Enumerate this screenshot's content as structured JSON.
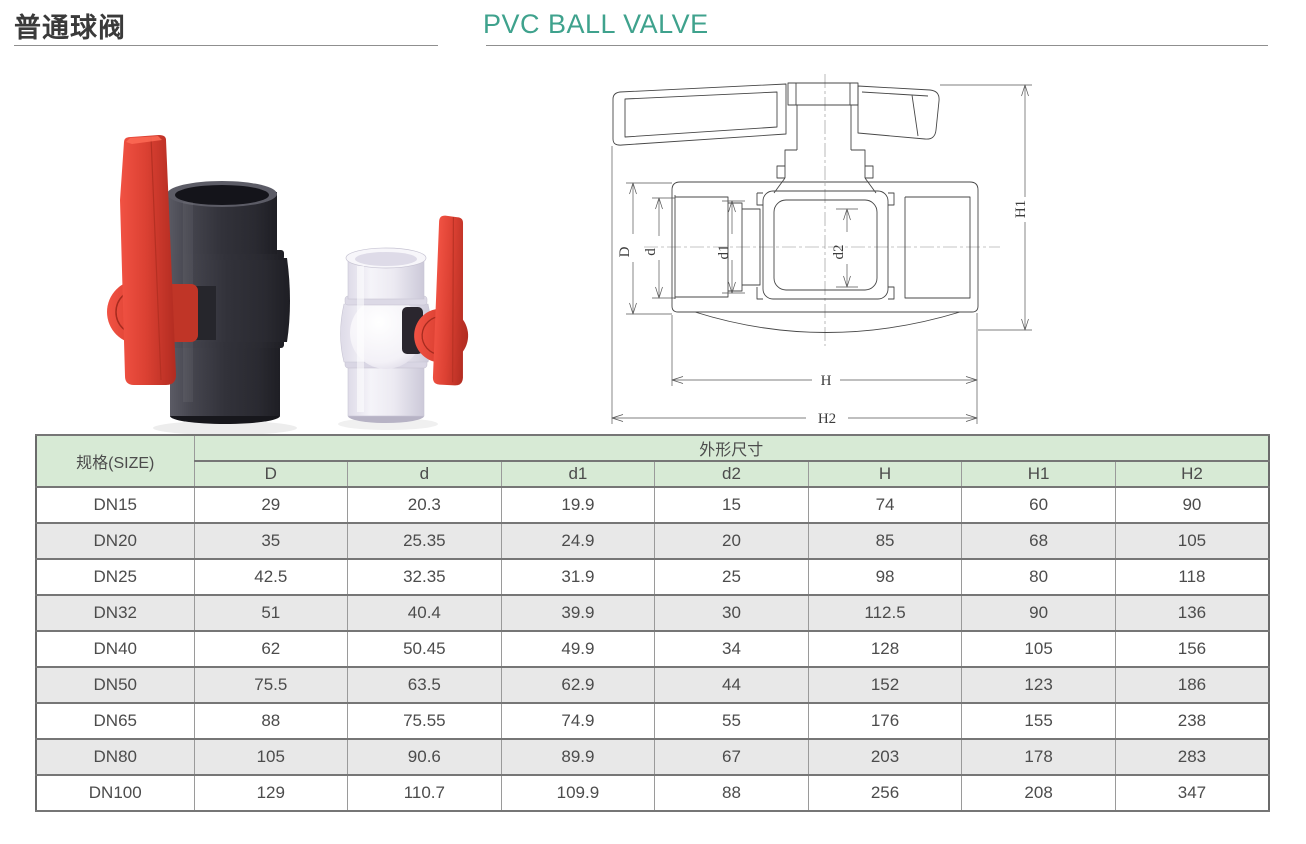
{
  "header": {
    "title_cn": "普通球阀",
    "title_en": "PVC BALL VALVE",
    "accent_color": "#3fa28d"
  },
  "products": [
    {
      "name": "dark-compact-ball-valve",
      "handle_color": "#d63a2c",
      "body_color": "#35353d"
    },
    {
      "name": "clear-compact-ball-valve",
      "handle_color": "#d63a2c",
      "body_color": "#eceadeF"
    }
  ],
  "diagram": {
    "dim_labels": [
      "D",
      "d",
      "d1",
      "d2",
      "H",
      "H1",
      "H2"
    ]
  },
  "table": {
    "size_header": "规格(SIZE)",
    "group_header": "外形尺寸",
    "columns": [
      "D",
      "d",
      "d1",
      "d2",
      "H",
      "H1",
      "H2"
    ],
    "rows": [
      {
        "size": "DN15",
        "values": [
          "29",
          "20.3",
          "19.9",
          "15",
          "74",
          "60",
          "90"
        ]
      },
      {
        "size": "DN20",
        "values": [
          "35",
          "25.35",
          "24.9",
          "20",
          "85",
          "68",
          "105"
        ]
      },
      {
        "size": "DN25",
        "values": [
          "42.5",
          "32.35",
          "31.9",
          "25",
          "98",
          "80",
          "118"
        ]
      },
      {
        "size": "DN32",
        "values": [
          "51",
          "40.4",
          "39.9",
          "30",
          "112.5",
          "90",
          "136"
        ]
      },
      {
        "size": "DN40",
        "values": [
          "62",
          "50.45",
          "49.9",
          "34",
          "128",
          "105",
          "156"
        ]
      },
      {
        "size": "DN50",
        "values": [
          "75.5",
          "63.5",
          "62.9",
          "44",
          "152",
          "123",
          "186"
        ]
      },
      {
        "size": "DN65",
        "values": [
          "88",
          "75.55",
          "74.9",
          "55",
          "176",
          "155",
          "238"
        ]
      },
      {
        "size": "DN80",
        "values": [
          "105",
          "90.6",
          "89.9",
          "67",
          "203",
          "178",
          "283"
        ]
      },
      {
        "size": "DN100",
        "values": [
          "129",
          "110.7",
          "109.9",
          "88",
          "256",
          "208",
          "347"
        ]
      }
    ]
  }
}
